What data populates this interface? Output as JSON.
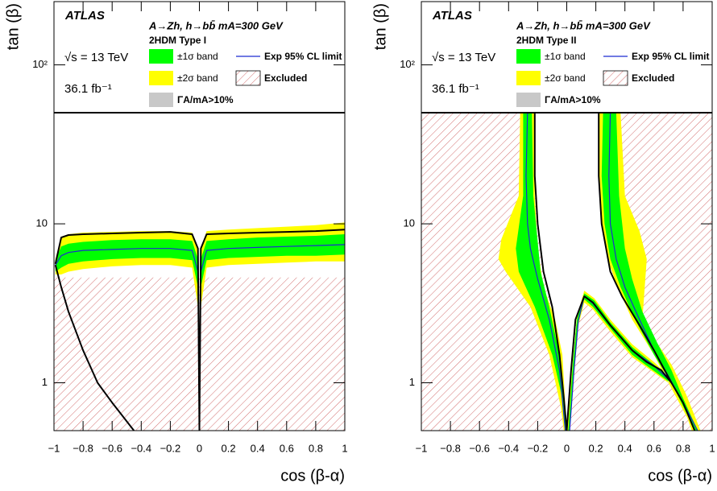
{
  "chart_data": [
    {
      "type": "contour",
      "experiment": "ATLAS",
      "process": "A→Zh, h→bb̄ mA=300 GeV",
      "model": "2HDM Type I",
      "energy": "√s = 13 TeV",
      "luminosity": "36.1 fb⁻¹",
      "x_label": "cos (β-α)",
      "y_label": "tan (β)",
      "xlim": [
        -1,
        1
      ],
      "ylim": [
        0.5,
        250
      ],
      "log_y": true,
      "legend_boundary": 50,
      "xticks": [
        {
          "value": -1,
          "label": "−1"
        },
        {
          "value": -0.8,
          "label": "−0.8"
        },
        {
          "value": -0.6,
          "label": "−0.6"
        },
        {
          "value": -0.4,
          "label": "−0.4"
        },
        {
          "value": -0.2,
          "label": "−0.2"
        },
        0,
        0.2,
        0.4,
        0.6,
        0.8,
        1
      ],
      "yticks": [
        1,
        10,
        {
          "value": 100,
          "label": "10²"
        }
      ],
      "excluded": {
        "name": "Excluded",
        "color": "#c03030",
        "x": [
          -1,
          1,
          1,
          -1
        ],
        "values": [
          0.5,
          0.5,
          4.6,
          4.6
        ]
      },
      "bands": [
        {
          "name": "±2σ band",
          "color": "#ffff00",
          "x": [
            -0.99,
            -0.95,
            -0.9,
            -0.8,
            -0.6,
            -0.4,
            -0.2,
            -0.05,
            -0.01,
            -0.01,
            -0.05,
            -0.2,
            -0.4,
            -0.6,
            -0.8,
            -0.9,
            -0.95,
            -0.99,
            null,
            0.01,
            0.05,
            0.2,
            0.4,
            0.6,
            0.8,
            1,
            1,
            0.8,
            0.6,
            0.4,
            0.2,
            0.05,
            0.01
          ],
          "values": [
            6,
            8.3,
            8.6,
            8.8,
            8.9,
            9,
            9,
            8.8,
            7,
            3,
            5.3,
            5.5,
            5.5,
            5.4,
            5.2,
            5,
            4.8,
            4.8,
            null,
            7,
            9,
            9.2,
            9.4,
            9.6,
            9.8,
            10.2,
            5.8,
            5.8,
            5.7,
            5.6,
            5.5,
            5.3,
            3
          ]
        },
        {
          "name": "±1σ band",
          "color": "#00ff00",
          "x": [
            -0.99,
            -0.95,
            -0.9,
            -0.8,
            -0.6,
            -0.4,
            -0.2,
            -0.05,
            -0.01,
            -0.01,
            -0.05,
            -0.2,
            -0.4,
            -0.6,
            -0.8,
            -0.9,
            -0.95,
            -0.99,
            null,
            0.01,
            0.05,
            0.2,
            0.4,
            0.6,
            0.8,
            1,
            1,
            0.8,
            0.6,
            0.4,
            0.2,
            0.05,
            0.01
          ],
          "values": [
            5.9,
            7.2,
            7.5,
            7.7,
            7.9,
            8,
            8,
            7.8,
            6,
            4,
            5.9,
            6.1,
            6.1,
            6,
            5.8,
            5.6,
            5.3,
            5,
            null,
            6,
            7.8,
            8,
            8.2,
            8.3,
            8.4,
            8.6,
            6.4,
            6.3,
            6.3,
            6.2,
            6.1,
            5.9,
            4
          ]
        },
        {
          "name": "ΓA/mA>10%",
          "color": "#c8c8c8",
          "x": [],
          "values": []
        }
      ],
      "series": [
        {
          "name": "Exp 95% CL limit",
          "color": "#1c2bd0",
          "width": 1.2,
          "x": [
            -0.99,
            -0.95,
            -0.9,
            -0.8,
            -0.6,
            -0.4,
            -0.2,
            -0.05,
            -0.01,
            0,
            0.01,
            0.05,
            0.2,
            0.4,
            0.6,
            0.8,
            1
          ],
          "values": [
            5.5,
            6.3,
            6.6,
            6.8,
            6.9,
            7,
            7,
            6.8,
            5,
            0.5,
            5,
            6.8,
            7,
            7.1,
            7.2,
            7.3,
            7.4
          ]
        },
        {
          "color": "#000000",
          "width": 2,
          "x": [
            -0.99,
            -0.95,
            -0.9,
            -0.8,
            -0.6,
            -0.4,
            -0.2,
            -0.05,
            -0.01,
            0,
            0.01,
            0.05,
            0.2,
            0.4,
            0.6,
            0.8,
            1,
            null,
            -0.99,
            -0.95,
            -0.9,
            -0.8,
            -0.7,
            -0.6,
            -0.45
          ],
          "values": [
            5.6,
            8.2,
            8.5,
            8.6,
            8.7,
            8.8,
            8.9,
            8.6,
            7,
            0.5,
            7,
            8.6,
            8.7,
            8.8,
            8.9,
            9,
            9.2,
            null,
            5.5,
            4,
            2.8,
            1.6,
            1,
            0.75,
            0.5
          ]
        }
      ]
    },
    {
      "type": "contour",
      "experiment": "ATLAS",
      "process": "A→Zh, h→bb̄ mA=300 GeV",
      "model": "2HDM Type II",
      "energy": "√s = 13 TeV",
      "luminosity": "36.1 fb⁻¹",
      "x_label": "cos (β-α)",
      "y_label": "tan (β)",
      "xlim": [
        -1,
        1
      ],
      "ylim": [
        0.5,
        250
      ],
      "log_y": true,
      "legend_boundary": 50,
      "xticks": [
        {
          "value": -1,
          "label": "−1"
        },
        {
          "value": -0.8,
          "label": "−0.8"
        },
        {
          "value": -0.6,
          "label": "−0.6"
        },
        {
          "value": -0.4,
          "label": "−0.4"
        },
        {
          "value": -0.2,
          "label": "−0.2"
        },
        0,
        0.2,
        0.4,
        0.6,
        0.8,
        1
      ],
      "yticks": [
        1,
        10,
        {
          "value": 100,
          "label": "10²"
        }
      ],
      "excluded": {
        "name": "Excluded",
        "color": "#c03030",
        "x": [
          -1,
          1,
          1,
          -1,
          null,
          -0.22,
          -0.22,
          -0.2,
          -0.16,
          -0.1,
          -0.05,
          -0.02,
          0,
          0.03,
          0.06,
          0.12,
          0.18,
          0.3,
          0.45,
          0.55,
          0.65,
          0.72,
          0.6,
          0.5,
          0.38,
          0.3,
          0.24,
          0.22,
          0.22
        ],
        "values": [
          0.5,
          0.5,
          50,
          50,
          null,
          50,
          20,
          10,
          5,
          3,
          1.5,
          0.8,
          0.5,
          1.2,
          2.5,
          3.5,
          3.2,
          2.3,
          1.6,
          1.35,
          1.2,
          1,
          1.6,
          2.3,
          3.5,
          5,
          10,
          20,
          50
        ]
      },
      "bands": [
        {
          "name": "±2σ band",
          "color": "#ffff00",
          "x": [
            -0.32,
            -0.33,
            -0.45,
            -0.47,
            -0.42,
            -0.25,
            -0.12,
            -0.04,
            -0.02,
            0,
            -0.03,
            -0.08,
            -0.16,
            -0.2,
            -0.22,
            -0.22,
            null,
            0.22,
            0.22,
            0.24,
            0.28,
            0.35,
            0.45,
            0.6,
            0.7,
            0.83,
            0.86,
            0.92,
            0.82,
            0.72,
            0.6,
            0.52,
            0.55,
            0.5,
            0.4,
            0.37,
            null,
            0,
            0.04,
            0.07,
            0.12,
            0.19,
            0.3,
            0.45,
            0.6,
            0.7,
            0.7,
            0.55,
            0.45,
            0.3,
            0.18,
            0.12,
            0.08,
            0.05,
            0.02
          ],
          "values": [
            50,
            15,
            8,
            6,
            5,
            3,
            1.5,
            0.7,
            0.5,
            0.5,
            1.5,
            2.5,
            4,
            7,
            15,
            50,
            null,
            50,
            20,
            10,
            6,
            4,
            2.5,
            1.5,
            1,
            0.6,
            0.5,
            0.5,
            0.85,
            1.3,
            1.9,
            2.5,
            6,
            9,
            15,
            50,
            null,
            0.5,
            1.3,
            2.6,
            3.8,
            3.4,
            2.5,
            1.75,
            1.35,
            1.1,
            1,
            1.25,
            1.45,
            2.1,
            2.9,
            3.2,
            2.3,
            1.1,
            0.5
          ]
        },
        {
          "name": "±1σ band",
          "color": "#00ff00",
          "x": [
            -0.3,
            -0.3,
            -0.35,
            -0.33,
            -0.22,
            -0.1,
            -0.03,
            -0.01,
            0,
            -0.05,
            -0.12,
            -0.18,
            -0.23,
            -0.24,
            null,
            0.25,
            0.24,
            0.26,
            0.3,
            0.37,
            0.47,
            0.6,
            0.72,
            0.84,
            0.88,
            0.9,
            0.8,
            0.72,
            0.62,
            0.52,
            0.45,
            0.4,
            0.36,
            0.34,
            null,
            0.01,
            0.04,
            0.07,
            0.12,
            0.19,
            0.3,
            0.45,
            0.6,
            0.7,
            0.7,
            0.55,
            0.45,
            0.3,
            0.18,
            0.12,
            0.08,
            0.05,
            0.02
          ],
          "values": [
            50,
            15,
            7,
            5,
            3,
            1.5,
            0.8,
            0.5,
            0.5,
            1.5,
            3,
            5,
            15,
            50,
            null,
            50,
            20,
            10,
            6,
            4,
            2.5,
            1.5,
            1,
            0.6,
            0.5,
            0.5,
            0.8,
            1.2,
            1.8,
            2.8,
            4.5,
            7,
            15,
            50,
            null,
            0.5,
            1.25,
            2.5,
            3.65,
            3.3,
            2.4,
            1.68,
            1.3,
            1.07,
            1.02,
            1.28,
            1.5,
            2.2,
            3,
            3.35,
            2.4,
            1.15,
            0.5
          ]
        },
        {
          "name": "ΓA/mA>10%",
          "color": "#c8c8c8",
          "x": [],
          "values": []
        }
      ],
      "series": [
        {
          "name": "Exp 95% CL limit",
          "color": "#1c2bd0",
          "width": 1.2,
          "x": [
            -0.27,
            -0.28,
            -0.27,
            -0.25,
            -0.2,
            -0.12,
            -0.05,
            -0.01,
            null,
            0.3,
            0.29,
            0.3,
            0.34,
            0.4,
            0.5,
            0.6,
            0.7,
            0.8,
            0.9,
            null,
            0.02,
            0.05,
            0.08,
            0.12,
            0.18,
            0.3,
            0.45,
            0.6,
            0.7
          ],
          "values": [
            50,
            20,
            10,
            7,
            4.5,
            2.5,
            1.2,
            0.5,
            null,
            50,
            20,
            10,
            6,
            4,
            2.5,
            1.6,
            1.1,
            0.75,
            0.5,
            null,
            0.5,
            1.2,
            2.45,
            3.5,
            3.15,
            2.3,
            1.6,
            1.28,
            1.05
          ]
        },
        {
          "color": "#000000",
          "width": 2,
          "x": [
            -0.22,
            -0.22,
            -0.2,
            -0.16,
            -0.1,
            -0.05,
            -0.02,
            0,
            null,
            0.22,
            0.22,
            0.24,
            0.3,
            0.38,
            0.5,
            0.6,
            0.72,
            0.8,
            0.88,
            null,
            0,
            0.03,
            0.06,
            0.12,
            0.18,
            0.3,
            0.45,
            0.55,
            0.65,
            0.72
          ],
          "values": [
            50,
            20,
            10,
            5,
            3,
            1.5,
            0.8,
            0.5,
            null,
            50,
            20,
            10,
            5,
            3.5,
            2.3,
            1.6,
            1,
            0.75,
            0.5,
            null,
            0.5,
            1.2,
            2.5,
            3.5,
            3.2,
            2.3,
            1.6,
            1.35,
            1.2,
            1
          ]
        }
      ]
    }
  ]
}
